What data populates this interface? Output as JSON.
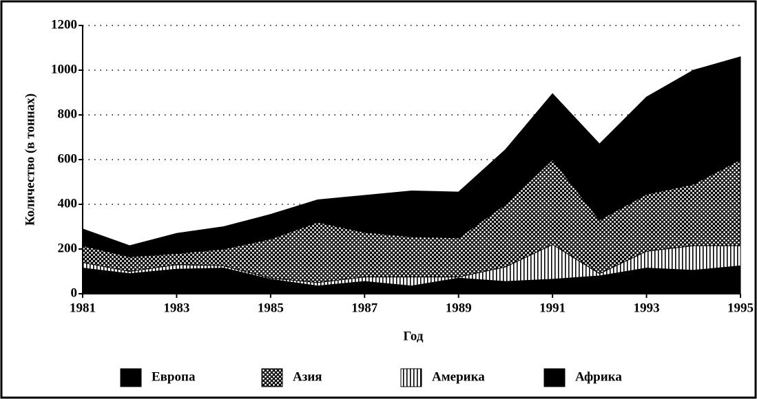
{
  "chart_data": {
    "type": "stacked_area",
    "xlabel": "Год",
    "ylabel": "Количество (в тоннах)",
    "x": [
      1981,
      1982,
      1983,
      1984,
      1985,
      1986,
      1987,
      1988,
      1989,
      1990,
      1991,
      1992,
      1993,
      1994,
      1995
    ],
    "series": [
      {
        "name": "Европа",
        "color": "#000000",
        "pattern": "solid",
        "values": [
          115,
          90,
          110,
          115,
          65,
          35,
          55,
          35,
          70,
          55,
          65,
          80,
          115,
          105,
          125
        ]
      },
      {
        "name": "Америка",
        "color": "#000000",
        "pattern": "vertical",
        "values": [
          25,
          10,
          20,
          10,
          5,
          15,
          20,
          40,
          5,
          65,
          155,
          10,
          75,
          110,
          90
        ]
      },
      {
        "name": "Азия",
        "color": "#000000",
        "pattern": "dots",
        "values": [
          75,
          65,
          50,
          75,
          175,
          270,
          200,
          180,
          175,
          280,
          380,
          240,
          255,
          275,
          385
        ]
      },
      {
        "name": "Африка",
        "color": "#000000",
        "pattern": "solid",
        "values": [
          75,
          50,
          90,
          100,
          110,
          100,
          165,
          205,
          205,
          245,
          295,
          340,
          435,
          510,
          460
        ]
      }
    ],
    "legend_order": [
      0,
      2,
      1,
      3
    ],
    "xlim": [
      1981,
      1995
    ],
    "xticks": [
      1981,
      1983,
      1985,
      1987,
      1989,
      1991,
      1993,
      1995
    ],
    "ylim": [
      0,
      1200
    ],
    "yticks": [
      0,
      200,
      400,
      600,
      800,
      1000,
      1200
    ],
    "grid": true
  }
}
